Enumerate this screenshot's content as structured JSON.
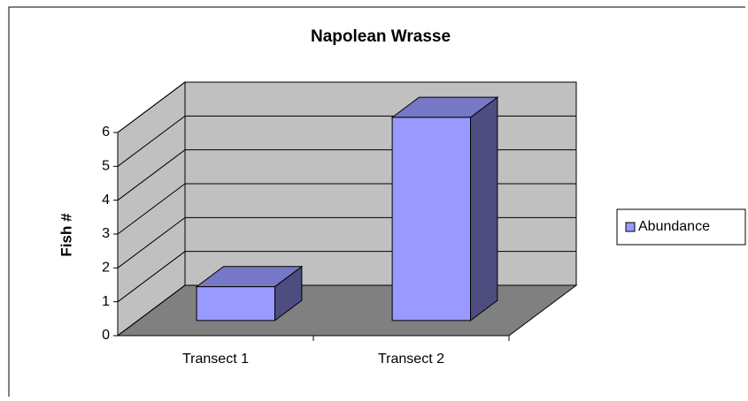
{
  "chart_data": {
    "type": "bar3d",
    "title": "Napolean Wrasse",
    "y_label": "Fish #",
    "categories": [
      "Transect 1",
      "Transect 2"
    ],
    "series": [
      {
        "name": "Abundance",
        "color": "#9999ff",
        "values": [
          1,
          6
        ]
      }
    ],
    "ylim": [
      0,
      6
    ],
    "yticks": [
      0,
      1,
      2,
      3,
      4,
      5,
      6
    ],
    "grid": true,
    "legend": "right"
  }
}
